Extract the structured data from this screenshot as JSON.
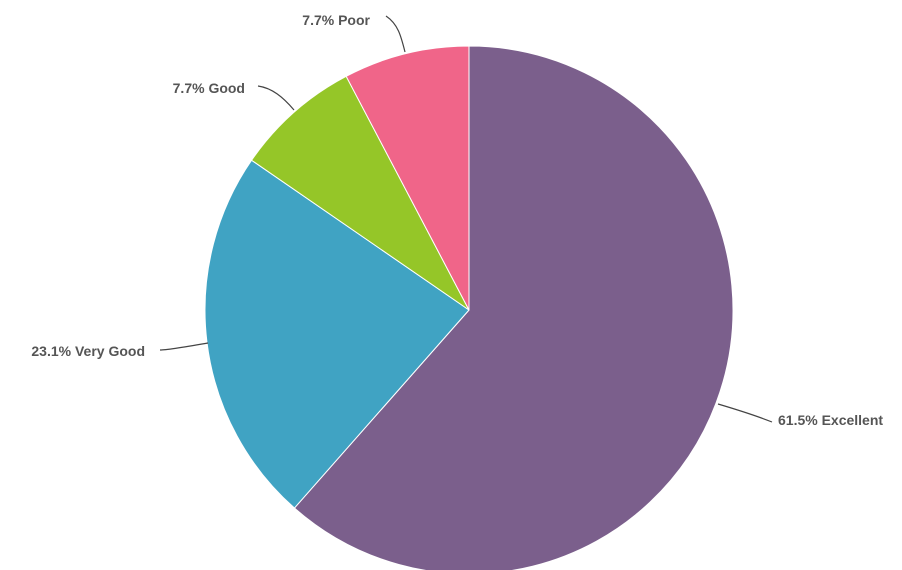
{
  "chart_data": {
    "type": "pie",
    "title": "",
    "slices": [
      {
        "label": "Excellent",
        "value": 61.5,
        "display": "61.5% Excellent",
        "color": "#7b5f8c"
      },
      {
        "label": "Very Good",
        "value": 23.1,
        "display": "23.1% Very Good",
        "color": "#40a3c3"
      },
      {
        "label": "Good",
        "value": 7.7,
        "display": "7.7% Good",
        "color": "#95c628"
      },
      {
        "label": "Poor",
        "value": 7.7,
        "display": "7.7% Poor",
        "color": "#f06589"
      }
    ],
    "start_angle": "12 o'clock",
    "direction": "clockwise"
  }
}
